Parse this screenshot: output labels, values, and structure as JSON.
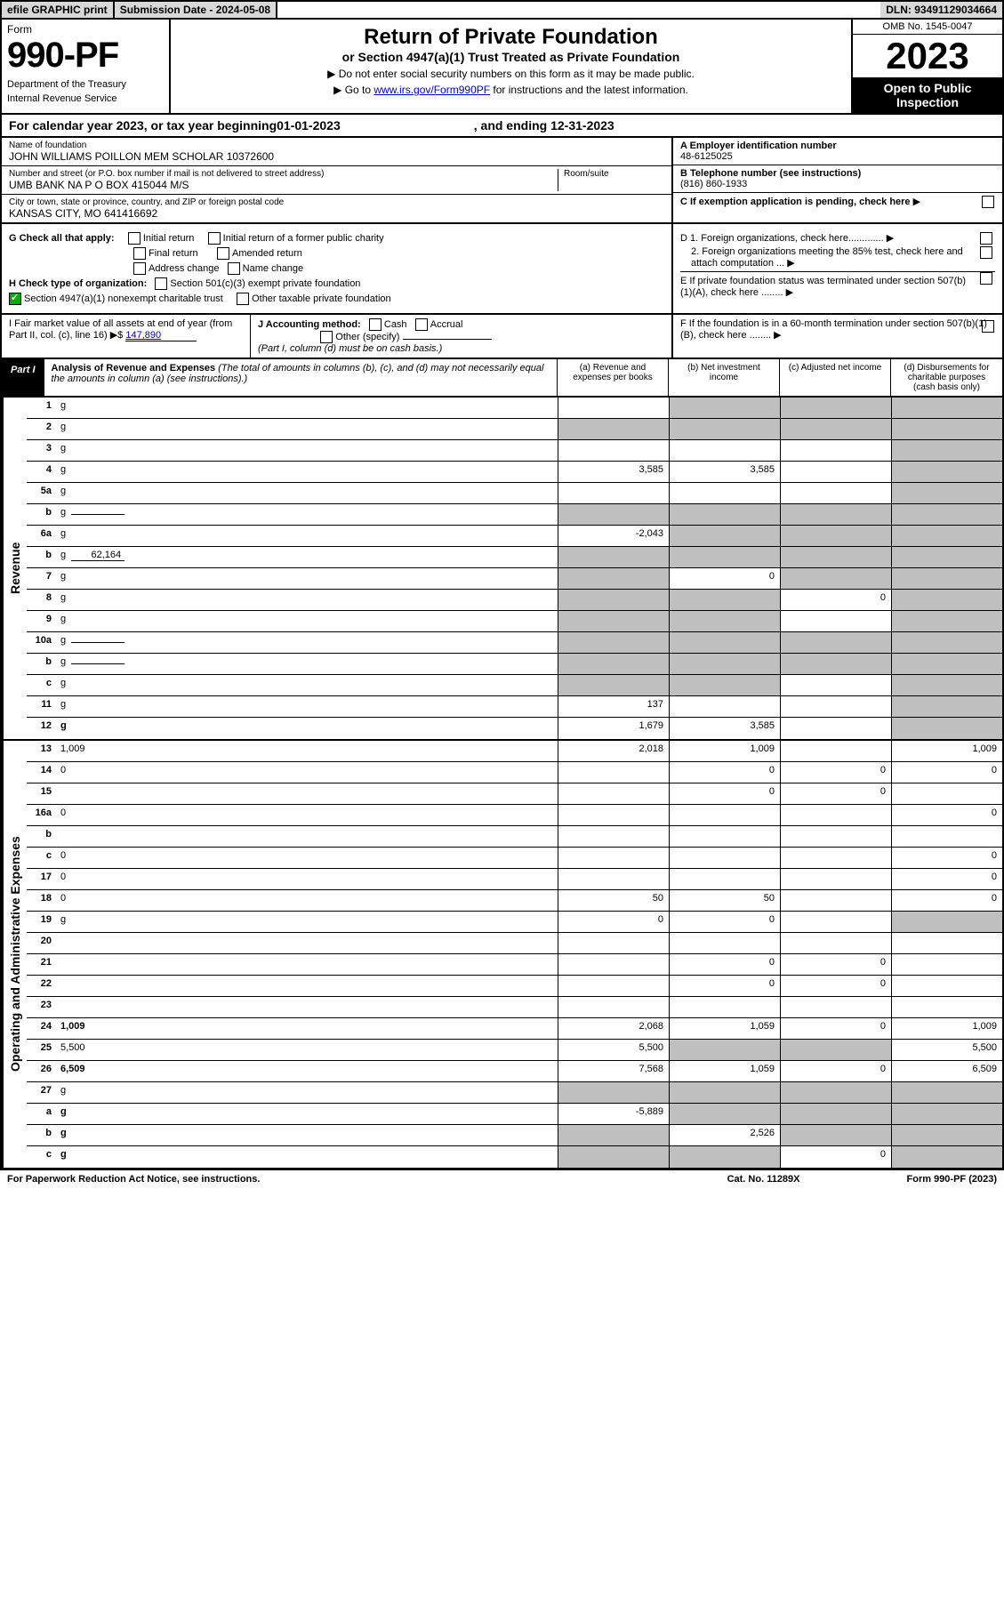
{
  "top": {
    "efile": "efile GRAPHIC print",
    "subdate_lbl": "Submission Date - ",
    "subdate": "2024-05-08",
    "dln_lbl": "DLN: ",
    "dln": "93491129034664"
  },
  "hdr": {
    "form_word": "Form",
    "num": "990-PF",
    "dept1": "Department of the Treasury",
    "dept2": "Internal Revenue Service",
    "title": "Return of Private Foundation",
    "sub": "or Section 4947(a)(1) Trust Treated as Private Foundation",
    "note1": "▶ Do not enter social security numbers on this form as it may be made public.",
    "note2_pre": "▶ Go to ",
    "note2_link": "www.irs.gov/Form990PF",
    "note2_post": " for instructions and the latest information.",
    "omb": "OMB No. 1545-0047",
    "year": "2023",
    "pub1": "Open to Public",
    "pub2": "Inspection"
  },
  "cal": {
    "pre": "For calendar year 2023, or tax year beginning ",
    "begin": "01-01-2023",
    "mid": ", and ending ",
    "end": "12-31-2023"
  },
  "info": {
    "name_lbl": "Name of foundation",
    "name": "JOHN WILLIAMS POILLON MEM SCHOLAR 10372600",
    "addr_lbl": "Number and street (or P.O. box number if mail is not delivered to street address)",
    "addr": "UMB BANK NA P O BOX 415044 M/S",
    "room_lbl": "Room/suite",
    "city_lbl": "City or town, state or province, country, and ZIP or foreign postal code",
    "city": "KANSAS CITY, MO  641416692",
    "ein_lbl": "A Employer identification number",
    "ein": "48-6125025",
    "tel_lbl": "B Telephone number (see instructions)",
    "tel": "(816) 860-1933",
    "c": "C If exemption application is pending, check here",
    "d1": "D 1. Foreign organizations, check here.............",
    "d2": "2. Foreign organizations meeting the 85% test, check here and attach computation ...",
    "e": "E  If private foundation status was terminated under section 507(b)(1)(A), check here ........",
    "f": "F  If the foundation is in a 60-month termination under section 507(b)(1)(B), check here ........"
  },
  "checks": {
    "g": "G Check all that apply:",
    "g1": "Initial return",
    "g2": "Initial return of a former public charity",
    "g3": "Final return",
    "g4": "Amended return",
    "g5": "Address change",
    "g6": "Name change",
    "h": "H Check type of organization:",
    "h1": "Section 501(c)(3) exempt private foundation",
    "h2": "Section 4947(a)(1) nonexempt charitable trust",
    "h3": "Other taxable private foundation",
    "i_lbl": "I Fair market value of all assets at end of year (from Part II, col. (c), line 16) ▶$",
    "i_val": "147,890",
    "j": "J Accounting method:",
    "j1": "Cash",
    "j2": "Accrual",
    "j3": "Other (specify)",
    "jnote": "(Part I, column (d) must be on cash basis.)"
  },
  "part1": {
    "lbl": "Part I",
    "title": "Analysis of Revenue and Expenses",
    "note": "(The total of amounts in columns (b), (c), and (d) may not necessarily equal the amounts in column (a) (see instructions).)",
    "col_a": "(a) Revenue and expenses per books",
    "col_b": "(b) Net investment income",
    "col_c": "(c) Adjusted net income",
    "col_d": "(d) Disbursements for charitable purposes (cash basis only)"
  },
  "rev_rows": [
    {
      "n": "1",
      "d": "g",
      "a": "",
      "b": "g",
      "c": "g"
    },
    {
      "n": "2",
      "d": "g",
      "a": "g",
      "b": "g",
      "c": "g"
    },
    {
      "n": "3",
      "d": "g",
      "a": "",
      "b": "",
      "c": ""
    },
    {
      "n": "4",
      "d": "g",
      "a": "3,585",
      "b": "3,585",
      "c": ""
    },
    {
      "n": "5a",
      "d": "g",
      "a": "",
      "b": "",
      "c": ""
    },
    {
      "n": "b",
      "d": "g",
      "a": "g",
      "b": "g",
      "c": "g",
      "inline": true
    },
    {
      "n": "6a",
      "d": "g",
      "a": "-2,043",
      "b": "g",
      "c": "g"
    },
    {
      "n": "b",
      "d": "g",
      "a": "g",
      "b": "g",
      "c": "g",
      "inline": true,
      "inline_val": "62,164"
    },
    {
      "n": "7",
      "d": "g",
      "a": "g",
      "b": "0",
      "c": "g"
    },
    {
      "n": "8",
      "d": "g",
      "a": "g",
      "b": "g",
      "c": "0"
    },
    {
      "n": "9",
      "d": "g",
      "a": "g",
      "b": "g",
      "c": ""
    },
    {
      "n": "10a",
      "d": "g",
      "a": "g",
      "b": "g",
      "c": "g",
      "inline": true
    },
    {
      "n": "b",
      "d": "g",
      "a": "g",
      "b": "g",
      "c": "g",
      "inline": true
    },
    {
      "n": "c",
      "d": "g",
      "a": "g",
      "b": "g",
      "c": ""
    },
    {
      "n": "11",
      "d": "g",
      "a": "137",
      "b": "",
      "c": ""
    },
    {
      "n": "12",
      "d": "g",
      "a": "1,679",
      "b": "3,585",
      "c": "",
      "bold": true
    }
  ],
  "exp_rows": [
    {
      "n": "13",
      "d": "1,009",
      "a": "2,018",
      "b": "1,009",
      "c": ""
    },
    {
      "n": "14",
      "d": "0",
      "a": "",
      "b": "0",
      "c": "0"
    },
    {
      "n": "15",
      "d": "",
      "a": "",
      "b": "0",
      "c": "0"
    },
    {
      "n": "16a",
      "d": "0",
      "a": "",
      "b": "",
      "c": ""
    },
    {
      "n": "b",
      "d": "",
      "a": "",
      "b": "",
      "c": ""
    },
    {
      "n": "c",
      "d": "0",
      "a": "",
      "b": "",
      "c": ""
    },
    {
      "n": "17",
      "d": "0",
      "a": "",
      "b": "",
      "c": ""
    },
    {
      "n": "18",
      "d": "0",
      "a": "50",
      "b": "50",
      "c": ""
    },
    {
      "n": "19",
      "d": "g",
      "a": "0",
      "b": "0",
      "c": ""
    },
    {
      "n": "20",
      "d": "",
      "a": "",
      "b": "",
      "c": ""
    },
    {
      "n": "21",
      "d": "",
      "a": "",
      "b": "0",
      "c": "0"
    },
    {
      "n": "22",
      "d": "",
      "a": "",
      "b": "0",
      "c": "0"
    },
    {
      "n": "23",
      "d": "",
      "a": "",
      "b": "",
      "c": ""
    },
    {
      "n": "24",
      "d": "1,009",
      "a": "2,068",
      "b": "1,059",
      "c": "0",
      "bold": true
    },
    {
      "n": "25",
      "d": "5,500",
      "a": "5,500",
      "b": "g",
      "c": "g"
    },
    {
      "n": "26",
      "d": "6,509",
      "a": "7,568",
      "b": "1,059",
      "c": "0",
      "bold": true
    },
    {
      "n": "27",
      "d": "g",
      "a": "g",
      "b": "g",
      "c": "g"
    },
    {
      "n": "a",
      "d": "g",
      "a": "-5,889",
      "b": "g",
      "c": "g",
      "bold": true
    },
    {
      "n": "b",
      "d": "g",
      "a": "g",
      "b": "2,526",
      "c": "g",
      "bold": true
    },
    {
      "n": "c",
      "d": "g",
      "a": "g",
      "b": "g",
      "c": "0",
      "bold": true
    }
  ],
  "sidelabels": {
    "rev": "Revenue",
    "exp": "Operating and Administrative Expenses"
  },
  "foot": {
    "l": "For Paperwork Reduction Act Notice, see instructions.",
    "c": "Cat. No. 11289X",
    "r": "Form 990-PF (2023)"
  },
  "style": {
    "grey": "#bfbfbf",
    "link": "#0000cc",
    "green": "#00aa00"
  }
}
